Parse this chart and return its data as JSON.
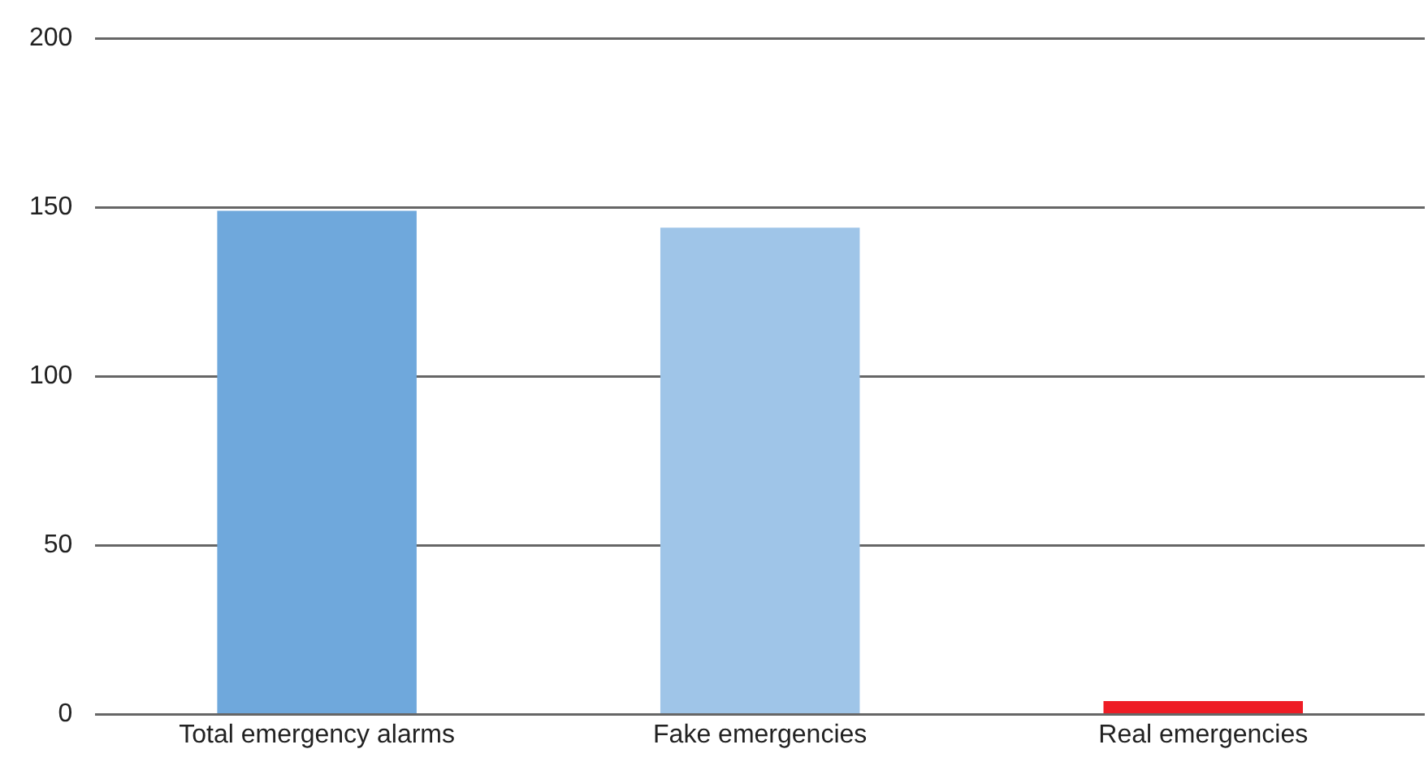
{
  "chart_data": {
    "type": "bar",
    "categories": [
      "Total emergency alarms",
      "Fake emergencies",
      "Real emergencies"
    ],
    "values": [
      149,
      144,
      4
    ],
    "colors": [
      "#6fa8dc",
      "#9fc5e8",
      "#ee1c25"
    ],
    "ylim": [
      0,
      200
    ],
    "yticks": [
      0,
      50,
      100,
      150,
      200
    ],
    "grid": "y"
  }
}
